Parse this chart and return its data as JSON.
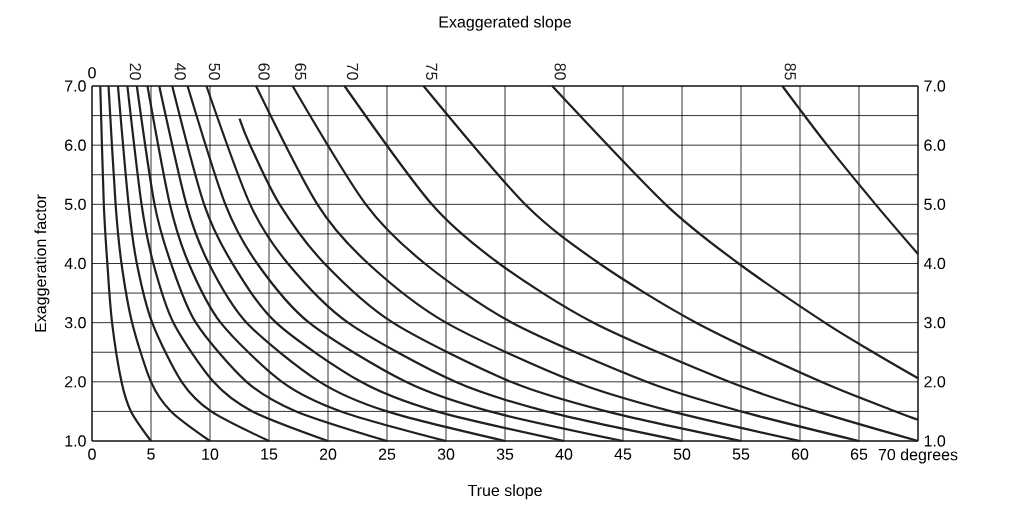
{
  "chart_data": {
    "type": "line",
    "title": "Exaggerated slope",
    "annotations": [
      "0"
    ],
    "xlabel": "True slope",
    "ylabel": "Exaggeration factor",
    "grid": true,
    "line_style": "solid",
    "xlim": [
      0,
      70
    ],
    "ylim": [
      1,
      7
    ],
    "y2lim": [
      1,
      7
    ],
    "xticks": [
      0,
      5,
      10,
      15,
      20,
      25,
      30,
      35,
      40,
      45,
      50,
      55,
      60,
      65,
      {
        "value": 70,
        "label": "70 degrees"
      }
    ],
    "yticks": [
      {
        "value": 1,
        "label": "1.0"
      },
      {
        "value": 1.5,
        "label": null
      },
      {
        "value": 2,
        "label": "2.0"
      },
      {
        "value": 2.5,
        "label": null
      },
      {
        "value": 3,
        "label": "3.0"
      },
      {
        "value": 3.5,
        "label": null
      },
      {
        "value": 4,
        "label": "4.0"
      },
      {
        "value": 4.5,
        "label": null
      },
      {
        "value": 5,
        "label": "5.0"
      },
      {
        "value": 5.5,
        "label": null
      },
      {
        "value": 6,
        "label": "6.0"
      },
      {
        "value": 6.5,
        "label": null
      },
      {
        "value": 7,
        "label": "7.0"
      }
    ],
    "y2ticks": [
      {
        "value": 1,
        "label": "1.0"
      },
      {
        "value": 2,
        "label": "2.0"
      },
      {
        "value": 3,
        "label": "3.0"
      },
      {
        "value": 4,
        "label": "4.0"
      },
      {
        "value": 5,
        "label": "5.0"
      },
      {
        "value": 6,
        "label": "6.0"
      },
      {
        "value": 7,
        "label": "7.0"
      }
    ],
    "series": [
      {
        "color": "#231f20",
        "x": [
          0.7,
          1.0,
          1.3,
          1.7,
          2.5,
          3.3,
          5.0
        ],
        "values": [
          7,
          5,
          4,
          3,
          2,
          1.5,
          1
        ]
      },
      {
        "color": "#231f20",
        "x": [
          1.4,
          2.0,
          2.5,
          3.4,
          5.0,
          6.7,
          10.0
        ],
        "values": [
          7,
          5,
          4,
          3,
          2,
          1.5,
          1
        ]
      },
      {
        "color": "#231f20",
        "x": [
          2.2,
          3.1,
          3.8,
          5.1,
          7.6,
          10.1,
          15.0
        ],
        "values": [
          7,
          5,
          4,
          3,
          2,
          1.5,
          1
        ]
      },
      {
        "name": "20",
        "color": "#231f20",
        "x": [
          3.0,
          4.2,
          5.2,
          6.9,
          10.3,
          13.6,
          20.0
        ],
        "values": [
          7,
          5,
          4,
          3,
          2,
          1.5,
          1
        ]
      },
      {
        "color": "#231f20",
        "x": [
          3.8,
          5.3,
          6.7,
          8.8,
          13.1,
          17.3,
          25.0
        ],
        "values": [
          7,
          5,
          4,
          3,
          2,
          1.5,
          1
        ]
      },
      {
        "color": "#231f20",
        "x": [
          4.7,
          6.6,
          8.2,
          10.9,
          16.1,
          21.1,
          30.0
        ],
        "values": [
          7,
          5,
          4,
          3,
          2,
          1.5,
          1
        ]
      },
      {
        "color": "#231f20",
        "x": [
          5.7,
          8.0,
          9.9,
          13.1,
          19.3,
          25.0,
          35.0
        ],
        "values": [
          7,
          5,
          4,
          3,
          2,
          1.5,
          1
        ]
      },
      {
        "name": "40",
        "color": "#231f20",
        "x": [
          6.8,
          9.5,
          11.9,
          15.6,
          22.8,
          29.2,
          40.0
        ],
        "values": [
          7,
          5,
          4,
          3,
          2,
          1.5,
          1
        ]
      },
      {
        "color": "#231f20",
        "x": [
          8.1,
          11.3,
          14.0,
          18.4,
          26.6,
          33.7,
          45.0
        ],
        "values": [
          7,
          5,
          4,
          3,
          2,
          1.5,
          1
        ]
      },
      {
        "name": "50",
        "color": "#231f20",
        "x": [
          9.7,
          13.4,
          16.6,
          21.7,
          30.8,
          38.5,
          50.0
        ],
        "values": [
          7,
          5,
          4,
          3,
          2,
          1.5,
          1
        ]
      },
      {
        "color": "#231f20",
        "x": [
          12.5,
          13.4,
          15.9,
          19.7,
          25.5,
          35.5,
          43.6,
          55.0
        ],
        "values": [
          6.45,
          6,
          5,
          4,
          3,
          2,
          1.5,
          1
        ]
      },
      {
        "name": "60",
        "color": "#231f20",
        "x": [
          13.9,
          19.1,
          23.4,
          30.0,
          40.9,
          49.1,
          60.0
        ],
        "values": [
          7,
          5,
          4,
          3,
          2,
          1.5,
          1
        ]
      },
      {
        "name": "65",
        "color": "#231f20",
        "x": [
          17.0,
          23.2,
          28.2,
          35.6,
          47.0,
          55.0,
          65.0
        ],
        "values": [
          7,
          5,
          4,
          3,
          2,
          1.5,
          1
        ]
      },
      {
        "name": "70",
        "color": "#231f20",
        "x": [
          21.4,
          28.8,
          34.5,
          42.5,
          54.0,
          61.4,
          70.0
        ],
        "values": [
          7,
          5,
          4,
          3,
          2,
          1.5,
          1
        ]
      },
      {
        "name": "75",
        "color": "#231f20",
        "x": [
          28.1,
          36.7,
          43.0,
          51.2,
          61.8,
          68.1,
          70.0
        ],
        "values": [
          7,
          5,
          4,
          3,
          2,
          1.5,
          1.36
        ]
      },
      {
        "name": "80",
        "color": "#231f20",
        "x": [
          39.0,
          48.6,
          54.8,
          62.1,
          66.2,
          70.0
        ],
        "values": [
          7,
          5,
          4,
          3,
          2.5,
          2.06
        ]
      },
      {
        "name": "85",
        "color": "#231f20",
        "x": [
          58.5,
          62.3,
          66.4,
          70.0
        ],
        "values": [
          7,
          6,
          5,
          4.16
        ]
      }
    ]
  }
}
